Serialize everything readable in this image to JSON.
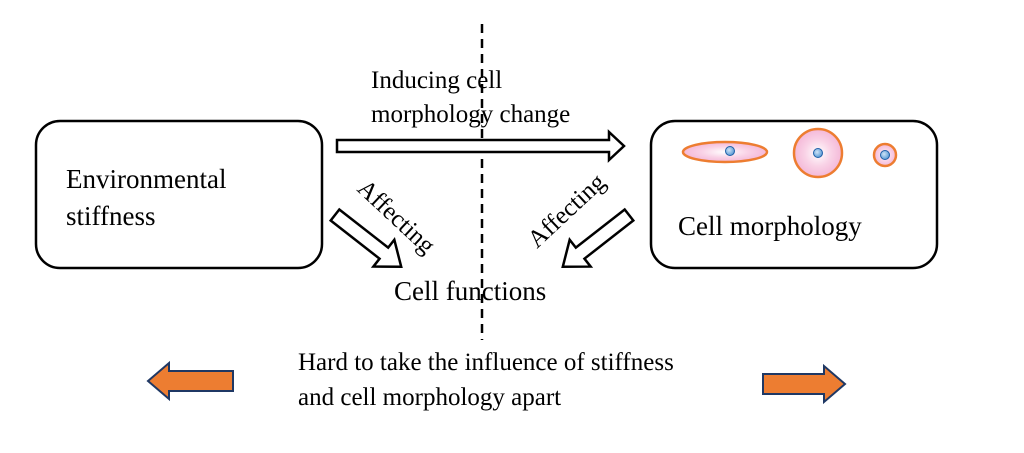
{
  "boxes": {
    "environmental_stiffness": {
      "line1": "Environmental",
      "line2": "stiffness"
    },
    "cell_morphology": {
      "label": "Cell morphology"
    }
  },
  "arrows": {
    "top": {
      "line1": "Inducing cell",
      "line2": "morphology change"
    },
    "affecting_left": "Affecting",
    "affecting_right": "Affecting"
  },
  "cell_functions": "Cell functions",
  "bottom_note": {
    "line1": "Hard to take the influence of stiffness",
    "line2": "and cell morphology apart"
  },
  "colors": {
    "cell_fill": "#f4b8d8",
    "cell_stroke": "#ed7d31",
    "nucleus_fill": "#5b9bd5",
    "orange_arrow_fill": "#ed7d31",
    "orange_arrow_stroke": "#1f3864"
  },
  "icons": [
    "elongated-cell-icon",
    "round-cell-icon",
    "small-cell-icon"
  ]
}
